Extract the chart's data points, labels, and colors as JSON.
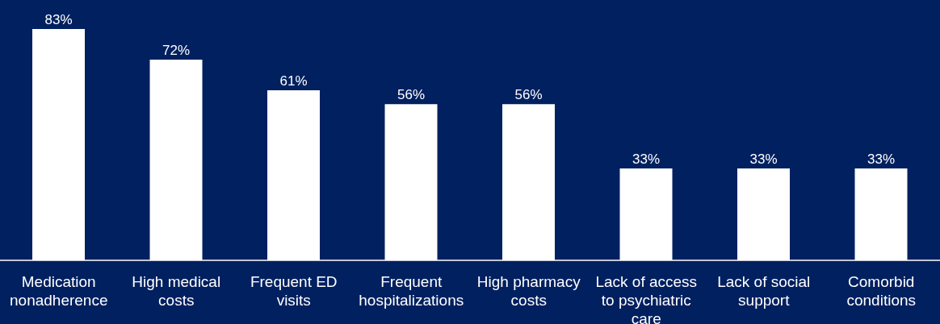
{
  "chart_data": {
    "type": "bar",
    "categories": [
      "Medication nonadherence",
      "High medical costs",
      "Frequent ED visits",
      "Frequent hospitalizations",
      "High pharmacy costs",
      "Lack of access to psychiatric care",
      "Lack of social support",
      "Comorbid conditions"
    ],
    "values": [
      83,
      72,
      61,
      56,
      56,
      33,
      33,
      33
    ],
    "value_labels": [
      "83%",
      "72%",
      "61%",
      "56%",
      "56%",
      "33%",
      "33%",
      "33%"
    ],
    "color": "#ffffff",
    "grid": false,
    "legend": false
  }
}
